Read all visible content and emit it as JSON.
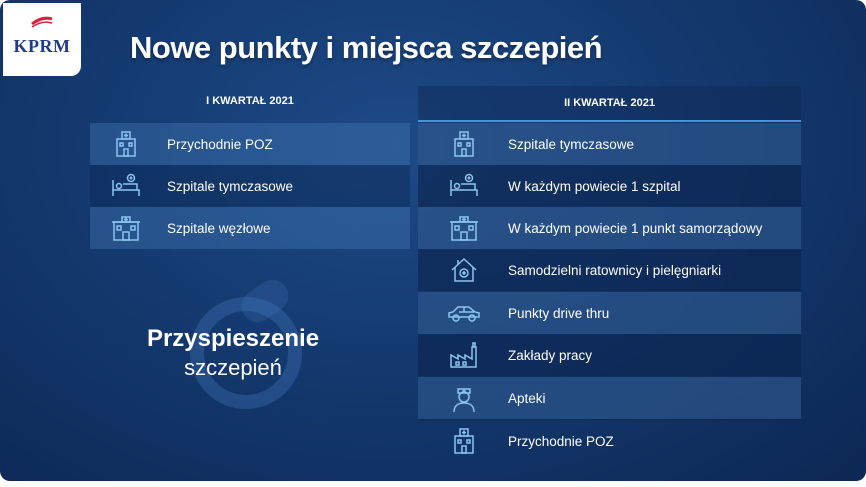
{
  "logo": {
    "text": "KPRM"
  },
  "title": "Nowe punkty i miejsca szczepień",
  "left_column": {
    "header": "I KWARTAŁ 2021",
    "items": [
      {
        "label": "Przychodnie POZ",
        "icon": "clinic-icon"
      },
      {
        "label": "Szpitale tymczasowe",
        "icon": "hospital-bed-icon"
      },
      {
        "label": "Szpitale węzłowe",
        "icon": "hospital-building-icon"
      }
    ]
  },
  "right_column": {
    "header": "II KWARTAŁ 2021",
    "items": [
      {
        "label": "Szpitale tymczasowe",
        "icon": "clinic-icon"
      },
      {
        "label": "W każdym powiecie 1 szpital",
        "icon": "hospital-bed-icon"
      },
      {
        "label": "W każdym powiecie 1 punkt samorządowy",
        "icon": "hospital-building-icon"
      },
      {
        "label": "Samodzielni ratownicy i pielęgniarki",
        "icon": "house-medical-icon"
      },
      {
        "label": "Punkty drive thru",
        "icon": "car-icon"
      },
      {
        "label": "Zakłady pracy",
        "icon": "factory-icon"
      },
      {
        "label": "Apteki",
        "icon": "pharmacist-icon"
      },
      {
        "label": "Przychodnie POZ",
        "icon": "clinic-icon"
      }
    ]
  },
  "campaign": {
    "line1": "Przyspieszenie",
    "line2": "szczepień"
  },
  "colors": {
    "background": "#143a70",
    "accent_line": "#4a93d6",
    "logo_text": "#1f3b8c",
    "flag_red": "#d4213d"
  }
}
